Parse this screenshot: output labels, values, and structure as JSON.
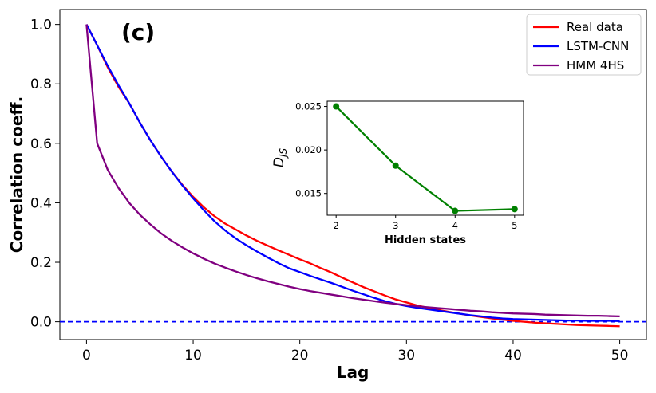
{
  "chart_data": [
    {
      "type": "line",
      "panel_label": "(c)",
      "xlabel": "Lag",
      "ylabel": "Correlation coeff.",
      "xlim": [
        -2.5,
        52.5
      ],
      "ylim": [
        -0.06,
        1.05
      ],
      "xticks": [
        0,
        10,
        20,
        30,
        40,
        50
      ],
      "xtick_labels": [
        "0",
        "10",
        "20",
        "30",
        "40",
        "50"
      ],
      "yticks": [
        0.0,
        0.2,
        0.4,
        0.6,
        0.8,
        1.0
      ],
      "ytick_labels": [
        "0.0",
        "0.2",
        "0.4",
        "0.6",
        "0.8",
        "1.0"
      ],
      "legend_position": "top-right",
      "x": [
        0,
        1,
        2,
        3,
        4,
        5,
        6,
        7,
        8,
        9,
        10,
        11,
        12,
        13,
        14,
        15,
        16,
        17,
        18,
        19,
        20,
        21,
        22,
        23,
        24,
        25,
        26,
        27,
        28,
        29,
        30,
        31,
        32,
        33,
        34,
        35,
        36,
        37,
        38,
        39,
        40,
        41,
        42,
        43,
        44,
        45,
        46,
        47,
        48,
        49,
        50
      ],
      "series": [
        {
          "name": "Real data",
          "color": "#ff0000",
          "values": [
            1.0,
            0.93,
            0.855,
            0.79,
            0.735,
            0.67,
            0.61,
            0.555,
            0.505,
            0.46,
            0.42,
            0.385,
            0.355,
            0.33,
            0.31,
            0.29,
            0.272,
            0.256,
            0.24,
            0.225,
            0.21,
            0.196,
            0.18,
            0.165,
            0.148,
            0.132,
            0.116,
            0.102,
            0.088,
            0.075,
            0.065,
            0.055,
            0.047,
            0.04,
            0.033,
            0.027,
            0.021,
            0.016,
            0.011,
            0.007,
            0.003,
            0.0,
            -0.003,
            -0.005,
            -0.007,
            -0.009,
            -0.011,
            -0.012,
            -0.013,
            -0.014,
            -0.015
          ]
        },
        {
          "name": "LSTM-CNN",
          "color": "#0000ff",
          "values": [
            1.0,
            0.93,
            0.86,
            0.795,
            0.735,
            0.67,
            0.61,
            0.555,
            0.505,
            0.458,
            0.415,
            0.375,
            0.338,
            0.307,
            0.28,
            0.257,
            0.236,
            0.216,
            0.197,
            0.18,
            0.167,
            0.154,
            0.142,
            0.13,
            0.117,
            0.104,
            0.092,
            0.08,
            0.069,
            0.06,
            0.053,
            0.047,
            0.042,
            0.037,
            0.032,
            0.027,
            0.022,
            0.018,
            0.014,
            0.011,
            0.009,
            0.008,
            0.007,
            0.006,
            0.005,
            0.004,
            0.004,
            0.003,
            0.003,
            0.003,
            0.002
          ]
        },
        {
          "name": "HMM 4HS",
          "color": "#800080",
          "values": [
            1.0,
            0.6,
            0.51,
            0.45,
            0.4,
            0.36,
            0.327,
            0.297,
            0.272,
            0.25,
            0.23,
            0.212,
            0.196,
            0.182,
            0.169,
            0.157,
            0.146,
            0.136,
            0.127,
            0.118,
            0.11,
            0.103,
            0.097,
            0.091,
            0.085,
            0.079,
            0.074,
            0.069,
            0.064,
            0.06,
            0.056,
            0.052,
            0.049,
            0.046,
            0.043,
            0.04,
            0.037,
            0.035,
            0.032,
            0.03,
            0.028,
            0.027,
            0.026,
            0.024,
            0.023,
            0.022,
            0.021,
            0.02,
            0.02,
            0.019,
            0.018
          ]
        }
      ],
      "reference_line": {
        "y": 0.0,
        "color": "#0000ff",
        "style": "dashed"
      }
    },
    {
      "type": "line",
      "role": "inset",
      "xlabel": "Hidden states",
      "ylabel": "D",
      "ylabel_subscript": "JS",
      "x": [
        2,
        3,
        4,
        5
      ],
      "values": [
        0.025,
        0.0182,
        0.013,
        0.0132
      ],
      "color": "#008000",
      "xlim": [
        1.85,
        5.15
      ],
      "ylim": [
        0.0125,
        0.0256
      ],
      "xticks": [
        2,
        3,
        4,
        5
      ],
      "xtick_labels": [
        "2",
        "3",
        "4",
        "5"
      ],
      "yticks": [
        0.015,
        0.02,
        0.025
      ],
      "ytick_labels": [
        "0.015",
        "0.020",
        "0.025"
      ]
    }
  ]
}
